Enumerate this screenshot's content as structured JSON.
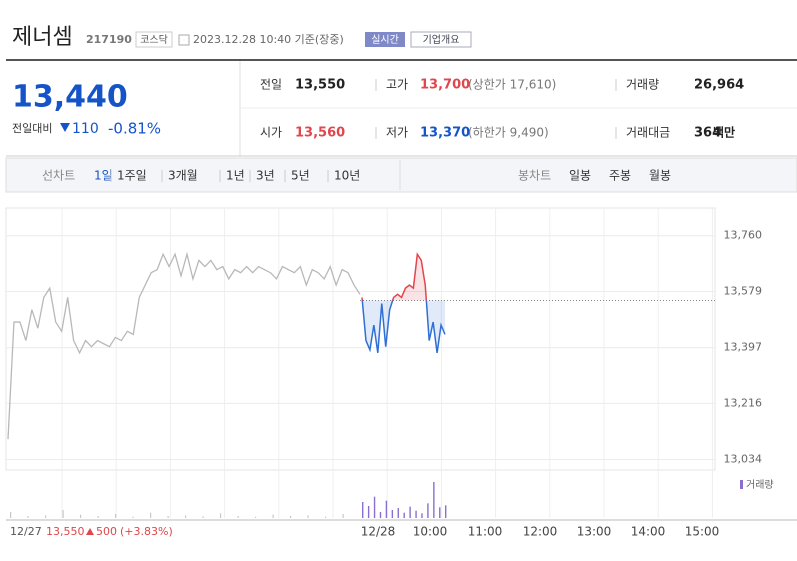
{
  "header": {
    "name": "제너셈",
    "code": "217190",
    "market": "코스닥",
    "timestamp": "2023.12.28 10:40 기준(장중)",
    "realtime": "실시간",
    "company": "기업개요"
  },
  "quote": {
    "price": "13,440",
    "change_label": "전일대비",
    "change": "110",
    "change_pct": "-0.81%",
    "rows": [
      [
        {
          "label": "전일",
          "value": "13,550"
        },
        {
          "label": "고가",
          "value": "13,700",
          "extra": "(상한가 17,610)"
        },
        {
          "label": "거래량",
          "value": "26,964"
        }
      ],
      [
        {
          "label": "시가",
          "value": "13,560"
        },
        {
          "label": "저가",
          "value": "13,370",
          "extra": "(하한가 9,490)"
        },
        {
          "label": "거래대금",
          "value": "364",
          "unit": "백만"
        }
      ]
    ]
  },
  "tabs": {
    "line_label": "선차트",
    "line": [
      "1일",
      "1주일",
      "3개월",
      "1년",
      "3년",
      "5년",
      "10년"
    ],
    "candle_label": "봉차트",
    "candle": [
      "일봉",
      "주봉",
      "월봉"
    ]
  },
  "chart_data": {
    "type": "line",
    "ylim": [
      13000,
      13850
    ],
    "yticks": [
      {
        "value": 13034,
        "label": "13,034"
      },
      {
        "value": 13216,
        "label": "13,216"
      },
      {
        "value": 13397,
        "label": "13,397"
      },
      {
        "value": 13579,
        "label": "13,579"
      },
      {
        "value": 13760,
        "label": "13,760"
      }
    ],
    "reference_line": 13550,
    "grid": true,
    "x_labels": [
      "12/27",
      "12/28",
      "10:00",
      "11:00",
      "12:00",
      "13:00",
      "14:00",
      "15:00"
    ],
    "series": [
      {
        "color": "#b8b8b8",
        "values": [
          13100,
          13480,
          13480,
          13420,
          13520,
          13460,
          13560,
          13590,
          13480,
          13450,
          13560,
          13420,
          13380,
          13420,
          13400,
          13420,
          13410,
          13400,
          13430,
          13420,
          13450,
          13440,
          13560,
          13600,
          13640,
          13650,
          13700,
          13660,
          13700,
          13630,
          13700,
          13620,
          13680,
          13660,
          13680,
          13650,
          13660,
          13620,
          13650,
          13640,
          13660,
          13640,
          13660,
          13650,
          13640,
          13620,
          13660,
          13650,
          13640,
          13660,
          13600,
          13650,
          13640,
          13620,
          13660,
          13600,
          13650,
          13640,
          13600,
          13570
        ]
      },
      {
        "color": "#2f6fd6",
        "up_color": "#e0464c",
        "values": [
          13560,
          13420,
          13390,
          13470,
          13380,
          13540,
          13400,
          13520,
          13560,
          13570,
          13560,
          13590,
          13600,
          13590,
          13700,
          13680,
          13600,
          13420,
          13480,
          13380,
          13470,
          13440
        ]
      }
    ],
    "volume": {
      "legend": "거래량",
      "ylim": [
        0,
        6000
      ],
      "prev_color": "#c8c8c8",
      "today_color": "#8a6fd0",
      "prev": [
        900,
        300,
        400,
        1200,
        500,
        300,
        600,
        200,
        800,
        300,
        400,
        250,
        700,
        300,
        200,
        500,
        300,
        400,
        200,
        600
      ],
      "today": [
        2400,
        1800,
        3200,
        900,
        2600,
        1200,
        1500,
        800,
        1700,
        1100,
        700,
        2200,
        5400,
        1600,
        1900
      ]
    },
    "footer": {
      "date": "12/27",
      "close": "13,550",
      "change": "500",
      "change_pct": "(+3.83%)"
    }
  }
}
